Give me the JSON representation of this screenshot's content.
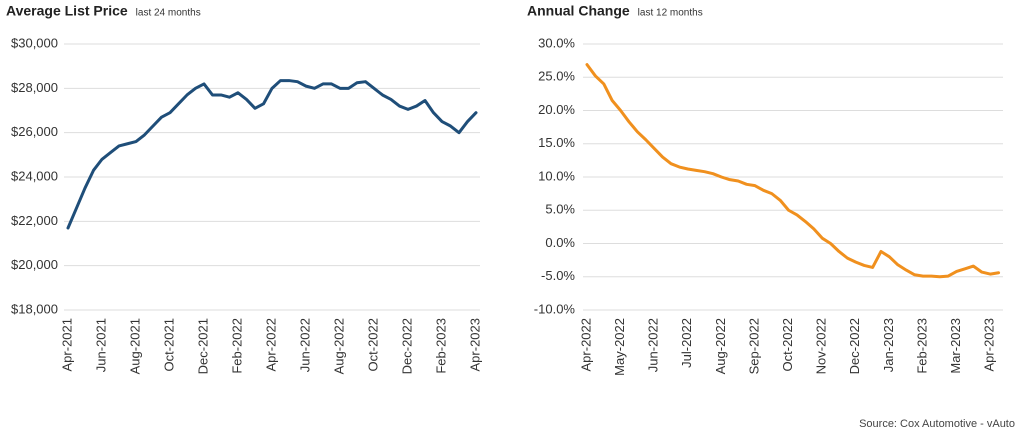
{
  "chart_data": [
    {
      "type": "line",
      "title": "Average List Price",
      "subtitle": "last 24 months",
      "categories": [
        "Apr-2021",
        null,
        null,
        null,
        "Jun-2021",
        null,
        null,
        null,
        "Aug-2021",
        null,
        null,
        null,
        "Oct-2021",
        null,
        null,
        null,
        "Dec-2021",
        null,
        null,
        null,
        "Feb-2022",
        null,
        null,
        null,
        "Apr-2022",
        null,
        null,
        null,
        "Jun-2022",
        null,
        null,
        null,
        "Aug-2022",
        null,
        null,
        null,
        "Oct-2022",
        null,
        null,
        null,
        "Dec-2022",
        null,
        null,
        null,
        "Feb-2023",
        null,
        null,
        null,
        "Apr-2023"
      ],
      "series": [
        {
          "name": "Average List Price",
          "color": "#1f4e79",
          "values": [
            21700,
            22600,
            23500,
            24300,
            24800,
            25100,
            25400,
            25500,
            25600,
            25900,
            26300,
            26700,
            26900,
            27300,
            27700,
            28000,
            28200,
            27700,
            27700,
            27600,
            27800,
            27500,
            27100,
            27300,
            28000,
            28350,
            28350,
            28300,
            28100,
            28000,
            28200,
            28200,
            28000,
            28000,
            28250,
            28300,
            28000,
            27700,
            27500,
            27200,
            27050,
            27200,
            27450,
            26900,
            26500,
            26300,
            26000,
            26500,
            26900
          ]
        }
      ],
      "ylim": [
        18000,
        30000
      ],
      "yticks": [
        {
          "value": 18000,
          "label": "$18,000"
        },
        {
          "value": 20000,
          "label": "$20,000"
        },
        {
          "value": 22000,
          "label": "$22,000"
        },
        {
          "value": 24000,
          "label": "$24,000"
        },
        {
          "value": 26000,
          "label": "$26,000"
        },
        {
          "value": 28000,
          "label": "$28,000"
        },
        {
          "value": 30000,
          "label": "$30,000"
        }
      ],
      "grid": true
    },
    {
      "type": "line",
      "title": "Annual Change",
      "subtitle": "last 12 months",
      "categories": [
        "Apr-2022",
        null,
        null,
        null,
        "May-2022",
        null,
        null,
        null,
        "Jun-2022",
        null,
        null,
        null,
        "Jul-2022",
        null,
        null,
        null,
        "Aug-2022",
        null,
        null,
        null,
        "Sep-2022",
        null,
        null,
        null,
        "Oct-2022",
        null,
        null,
        null,
        "Nov-2022",
        null,
        null,
        null,
        "Dec-2022",
        null,
        null,
        null,
        "Jan-2023",
        null,
        null,
        null,
        "Feb-2023",
        null,
        null,
        null,
        "Mar-2023",
        null,
        null,
        null,
        "Apr-2023",
        null
      ],
      "series": [
        {
          "name": "Annual Change",
          "color": "#f0901e",
          "values": [
            26.9,
            25.2,
            24.0,
            21.5,
            20.0,
            18.3,
            16.8,
            15.6,
            14.3,
            13.0,
            12.0,
            11.5,
            11.2,
            11.0,
            10.8,
            10.5,
            10.0,
            9.6,
            9.4,
            8.9,
            8.7,
            8.0,
            7.5,
            6.5,
            5.0,
            4.3,
            3.3,
            2.2,
            0.8,
            0.0,
            -1.2,
            -2.2,
            -2.8,
            -3.3,
            -3.6,
            -1.2,
            -2.0,
            -3.2,
            -4.0,
            -4.7,
            -4.9,
            -4.9,
            -5.0,
            -4.9,
            -4.2,
            -3.8,
            -3.4,
            -4.3,
            -4.6,
            -4.4
          ]
        }
      ],
      "ylim": [
        -10,
        30
      ],
      "yticks": [
        {
          "value": -10,
          "label": "-10.0%"
        },
        {
          "value": -5,
          "label": "-5.0%"
        },
        {
          "value": 0,
          "label": "0.0%"
        },
        {
          "value": 5,
          "label": "5.0%"
        },
        {
          "value": 10,
          "label": "10.0%"
        },
        {
          "value": 15,
          "label": "15.0%"
        },
        {
          "value": 20,
          "label": "20.0%"
        },
        {
          "value": 25,
          "label": "25.0%"
        },
        {
          "value": 30,
          "label": "30.0%"
        }
      ],
      "grid": true
    }
  ],
  "source": "Source: Cox Automotive - vAuto"
}
